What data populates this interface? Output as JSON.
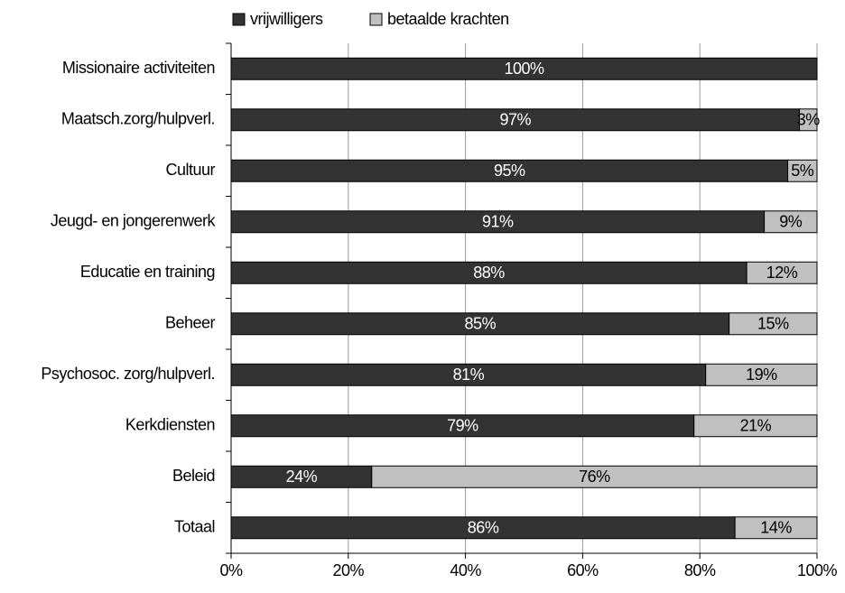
{
  "chart_data": {
    "type": "stacked_barh",
    "categories": [
      "Missionaire activiteiten",
      "Maatsch.zorg/hulpverl.",
      "Cultuur",
      "Jeugd- en jongerenwerk",
      "Educatie en training",
      "Beheer",
      "Psychosoc. zorg/hulpverl.",
      "Kerkdiensten",
      "Beleid",
      "Totaal"
    ],
    "series": [
      {
        "name": "vrijwilligers",
        "color": "#333333",
        "values": [
          100,
          97,
          95,
          91,
          88,
          85,
          81,
          79,
          24,
          86
        ],
        "value_labels": [
          "100%",
          "97%",
          "95%",
          "91%",
          "88%",
          "85%",
          "81%",
          "79%",
          "24%",
          "86%"
        ]
      },
      {
        "name": "betaalde krachten",
        "color": "#c0c0c0",
        "values": [
          0,
          3,
          5,
          9,
          12,
          15,
          19,
          21,
          76,
          14
        ],
        "value_labels": [
          null,
          "3%",
          "5%",
          "9%",
          "12%",
          "15%",
          "19%",
          "21%",
          "76%",
          "14%"
        ]
      }
    ],
    "xlim": [
      0,
      100
    ],
    "xticks": [
      {
        "value": 0,
        "label": "0%"
      },
      {
        "value": 20,
        "label": "20%"
      },
      {
        "value": 40,
        "label": "40%"
      },
      {
        "value": 60,
        "label": "60%"
      },
      {
        "value": 80,
        "label": "80%"
      },
      {
        "value": 100,
        "label": "100%"
      }
    ],
    "grid": true,
    "legend": "top"
  }
}
